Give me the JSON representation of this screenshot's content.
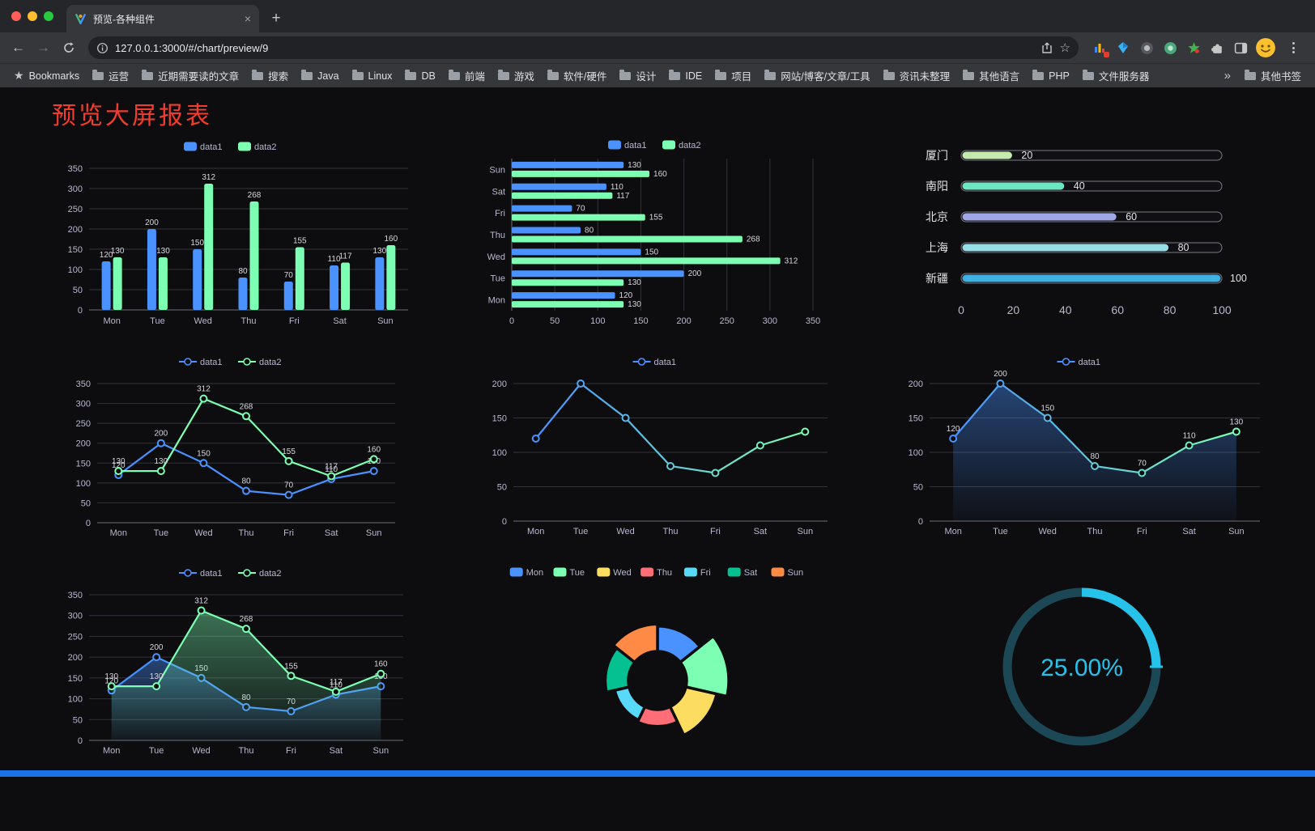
{
  "browser": {
    "tab_title": "预览-各种组件",
    "url": "127.0.0.1:3000/#/chart/preview/9",
    "bookmarks_label": "Bookmarks",
    "bookmarks": [
      "运营",
      "近期需要读的文章",
      "搜索",
      "Java",
      "Linux",
      "DB",
      "前端",
      "游戏",
      "软件/硬件",
      "设计",
      "IDE",
      "项目",
      "网站/博客/文章/工具",
      "资讯未整理",
      "其他语言",
      "PHP",
      "文件服务器"
    ],
    "other_bookmarks": "其他书签",
    "icons": {
      "back": "←",
      "forward": "→",
      "tab_close": "×",
      "new_tab": "+",
      "overflow": "»",
      "bookmarks_star": "★",
      "omnibox_star": "☆"
    }
  },
  "page": {
    "title": "预览大屏报表"
  },
  "chart_data": [
    {
      "type": "bar",
      "title": "",
      "categories": [
        "Mon",
        "Tue",
        "Wed",
        "Thu",
        "Fri",
        "Sat",
        "Sun"
      ],
      "series": [
        {
          "name": "data1",
          "color": "#4992ff",
          "values": [
            120,
            200,
            150,
            80,
            70,
            110,
            130
          ]
        },
        {
          "name": "data2",
          "color": "#7cffb2",
          "values": [
            130,
            130,
            312,
            268,
            155,
            117,
            160
          ]
        }
      ],
      "ylim": [
        0,
        350
      ],
      "ytick": 50,
      "show_labels": true,
      "legend_position": "top",
      "grid": true
    },
    {
      "type": "hbar",
      "title": "",
      "categories": [
        "Mon",
        "Tue",
        "Wed",
        "Thu",
        "Fri",
        "Sat",
        "Sun"
      ],
      "series": [
        {
          "name": "data1",
          "color": "#4992ff",
          "values": [
            120,
            200,
            150,
            80,
            70,
            110,
            130
          ]
        },
        {
          "name": "data2",
          "color": "#7cffb2",
          "values": [
            130,
            130,
            312,
            268,
            155,
            117,
            160
          ]
        }
      ],
      "xlim": [
        0,
        350
      ],
      "xtick": 50,
      "show_labels": true,
      "legend_position": "top",
      "grid": true
    },
    {
      "type": "progress",
      "title": "",
      "categories": [
        "厦门",
        "南阳",
        "北京",
        "上海",
        "新疆"
      ],
      "values": [
        20,
        40,
        60,
        80,
        100
      ],
      "colors": [
        "#c4ebad",
        "#6be6c1",
        "#a0a7e6",
        "#96dee8",
        "#3fb1e3"
      ],
      "xlim": [
        0,
        100
      ],
      "xticks": [
        0,
        20,
        40,
        60,
        80,
        100
      ]
    },
    {
      "type": "line",
      "title": "",
      "categories": [
        "Mon",
        "Tue",
        "Wed",
        "Thu",
        "Fri",
        "Sat",
        "Sun"
      ],
      "series": [
        {
          "name": "data1",
          "color": "#4992ff",
          "values": [
            120,
            200,
            150,
            80,
            70,
            110,
            130
          ]
        },
        {
          "name": "data2",
          "color": "#7cffb2",
          "values": [
            130,
            130,
            312,
            268,
            155,
            117,
            160
          ]
        }
      ],
      "ylim": [
        0,
        350
      ],
      "ytick": 50,
      "show_labels": true,
      "legend_position": "top",
      "grid": true
    },
    {
      "type": "line",
      "title": "",
      "categories": [
        "Mon",
        "Tue",
        "Wed",
        "Thu",
        "Fri",
        "Sat",
        "Sun"
      ],
      "series": [
        {
          "name": "data1",
          "gradient": [
            "#4992ff",
            "#7cffb2"
          ],
          "values": [
            120,
            200,
            150,
            80,
            70,
            110,
            130
          ]
        }
      ],
      "ylim": [
        0,
        200
      ],
      "ytick": 50,
      "show_labels": false,
      "legend_position": "top",
      "grid": true
    },
    {
      "type": "line",
      "title": "",
      "categories": [
        "Mon",
        "Tue",
        "Wed",
        "Thu",
        "Fri",
        "Sat",
        "Sun"
      ],
      "series": [
        {
          "name": "data1",
          "gradient": [
            "#4992ff",
            "#7cffb2"
          ],
          "area": true,
          "values": [
            120,
            200,
            150,
            80,
            70,
            110,
            130
          ]
        }
      ],
      "ylim": [
        0,
        200
      ],
      "ytick": 50,
      "show_labels": true,
      "legend_position": "top",
      "grid": true
    },
    {
      "type": "line",
      "title": "",
      "categories": [
        "Mon",
        "Tue",
        "Wed",
        "Thu",
        "Fri",
        "Sat",
        "Sun"
      ],
      "series": [
        {
          "name": "data1",
          "color": "#4992ff",
          "area": true,
          "values": [
            120,
            200,
            150,
            80,
            70,
            110,
            130
          ]
        },
        {
          "name": "data2",
          "color": "#7cffb2",
          "area": true,
          "values": [
            130,
            130,
            312,
            268,
            155,
            117,
            160
          ]
        }
      ],
      "ylim": [
        0,
        350
      ],
      "ytick": 50,
      "show_labels": true,
      "legend_position": "top",
      "grid": true
    },
    {
      "type": "pie",
      "subtype": "rose-doughnut",
      "title": "",
      "categories": [
        "Mon",
        "Tue",
        "Wed",
        "Thu",
        "Fri",
        "Sat",
        "Sun"
      ],
      "values": [
        120,
        200,
        150,
        80,
        70,
        110,
        130
      ],
      "colors": [
        "#4992ff",
        "#7cffb2",
        "#fddd60",
        "#ff6e76",
        "#58d9f9",
        "#05c091",
        "#ff8a45"
      ],
      "legend_position": "top"
    },
    {
      "type": "gauge",
      "title": "",
      "value": 25,
      "label": "25.00%",
      "color": "#27c2ea",
      "track_color": "#1b4854"
    }
  ]
}
